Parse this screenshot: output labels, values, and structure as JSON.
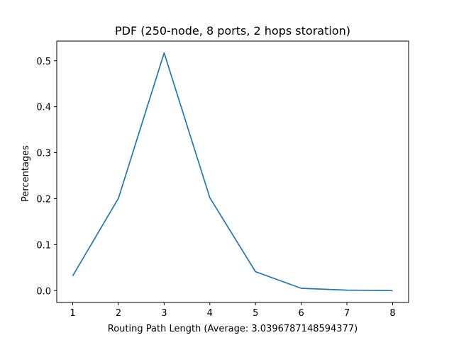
{
  "chart_data": {
    "type": "line",
    "title": "PDF (250-node, 8 ports, 2 hops storation)",
    "xlabel": "Routing Path Length (Average: 3.0396787148594377)",
    "ylabel": "Percentages",
    "x": [
      1,
      2,
      3,
      4,
      5,
      6,
      7,
      8
    ],
    "series": [
      {
        "values": [
          0.032,
          0.201,
          0.517,
          0.202,
          0.041,
          0.005,
          0.001,
          0.0
        ],
        "color": "#1f77b4"
      }
    ],
    "xlim": [
      0.65,
      8.35
    ],
    "ylim": [
      -0.0258,
      0.5428
    ],
    "xticks": [
      "1",
      "2",
      "3",
      "4",
      "5",
      "6",
      "7",
      "8"
    ],
    "xtick_values": [
      1,
      2,
      3,
      4,
      5,
      6,
      7,
      8
    ],
    "yticks": [
      "0.0",
      "0.1",
      "0.2",
      "0.3",
      "0.4",
      "0.5"
    ],
    "ytick_values": [
      0.0,
      0.1,
      0.2,
      0.3,
      0.4,
      0.5
    ],
    "grid": false,
    "legend": "none"
  }
}
